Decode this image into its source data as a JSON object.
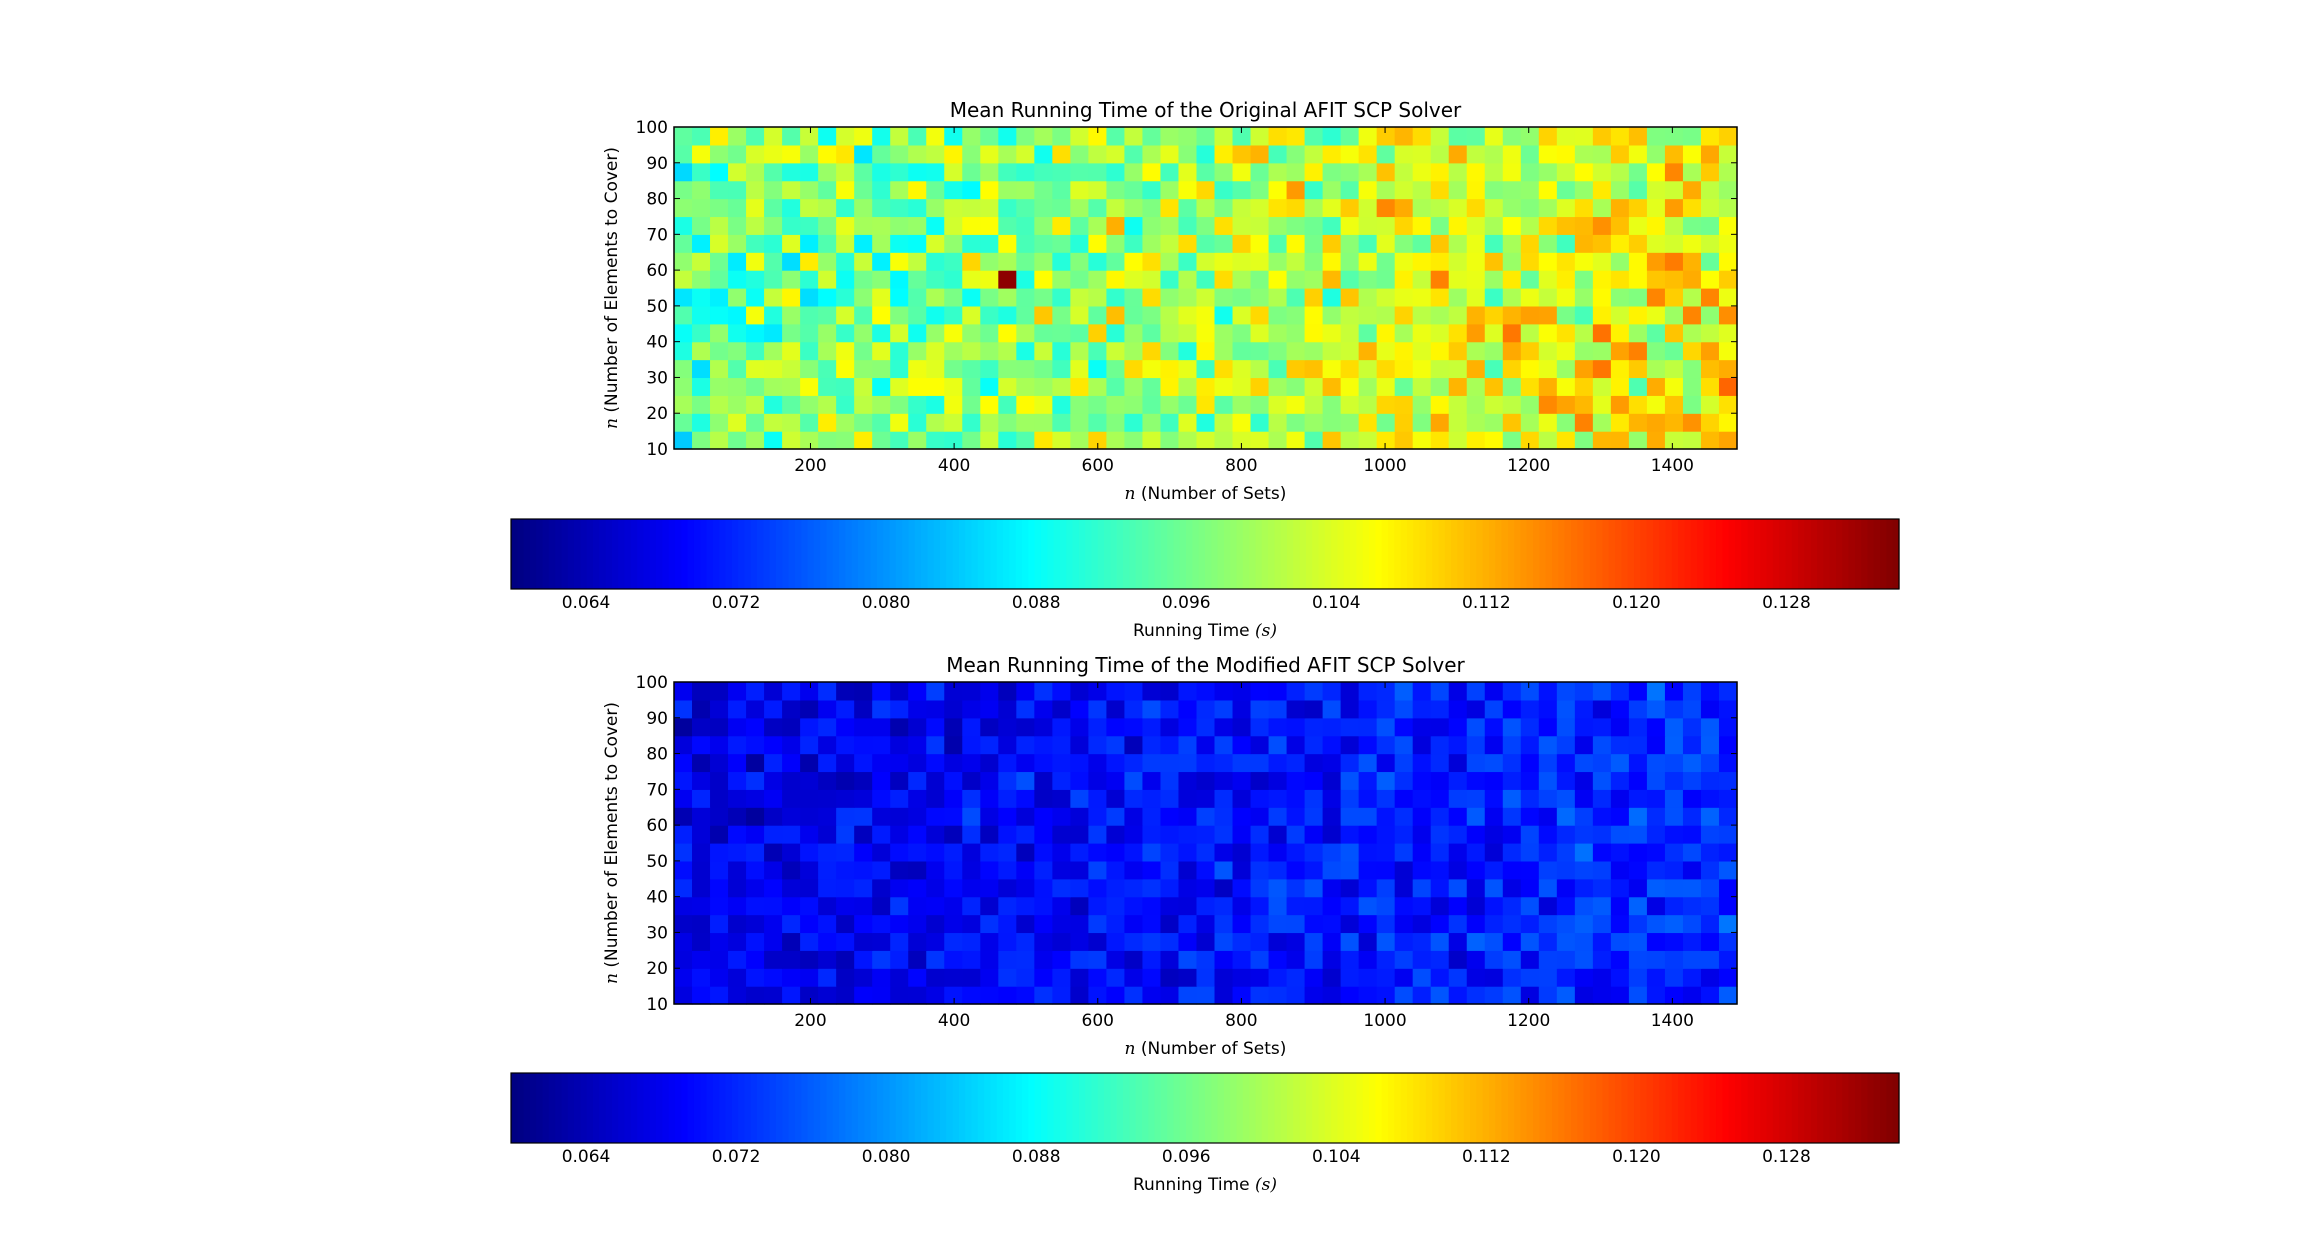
{
  "chart_data": [
    {
      "type": "heatmap",
      "title": "Mean Running Time of the Original AFIT SCP Solver",
      "xlabel_var": "n",
      "xlabel_text": "(Number of Sets)",
      "ylabel_var": "n",
      "ylabel_text": "(Number of Elements to Cover)",
      "x_range": [
        10,
        1490
      ],
      "y_range": [
        10,
        100
      ],
      "x_ticks": [
        "200",
        "400",
        "600",
        "800",
        "1000",
        "1200",
        "1400"
      ],
      "y_ticks": [
        "10",
        "20",
        "30",
        "40",
        "50",
        "60",
        "70",
        "80",
        "90",
        "100"
      ],
      "grid": "59 columns x 18 rows",
      "value_range_typical": [
        0.086,
        0.116
      ],
      "value_mean_low_n": 0.095,
      "value_mean_high_n": 0.106,
      "outlier": {
        "x": 480,
        "y": 60,
        "value": 0.133
      },
      "colorbar": {
        "label_text": "Running Time",
        "label_var": "(s)",
        "range": [
          0.06,
          0.134
        ],
        "ticks": [
          "0.064",
          "0.072",
          "0.080",
          "0.088",
          "0.096",
          "0.104",
          "0.112",
          "0.120",
          "0.128"
        ]
      }
    },
    {
      "type": "heatmap",
      "title": "Mean Running Time of the Modified AFIT SCP Solver",
      "xlabel_var": "n",
      "xlabel_text": "(Number of Sets)",
      "ylabel_var": "n",
      "ylabel_text": "(Number of Elements to Cover)",
      "x_range": [
        10,
        1490
      ],
      "y_range": [
        10,
        100
      ],
      "x_ticks": [
        "200",
        "400",
        "600",
        "800",
        "1000",
        "1200",
        "1400"
      ],
      "y_ticks": [
        "10",
        "20",
        "30",
        "40",
        "50",
        "60",
        "70",
        "80",
        "90",
        "100"
      ],
      "grid": "59 columns x 18 rows",
      "value_range_typical": [
        0.064,
        0.078
      ],
      "value_mean_low_n": 0.0675,
      "value_mean_high_n": 0.0725,
      "colorbar": {
        "label_text": "Running Time",
        "label_var": "(s)",
        "range": [
          0.06,
          0.134
        ],
        "ticks": [
          "0.064",
          "0.072",
          "0.080",
          "0.088",
          "0.096",
          "0.104",
          "0.112",
          "0.120",
          "0.128"
        ]
      }
    }
  ],
  "colormap": "jet"
}
